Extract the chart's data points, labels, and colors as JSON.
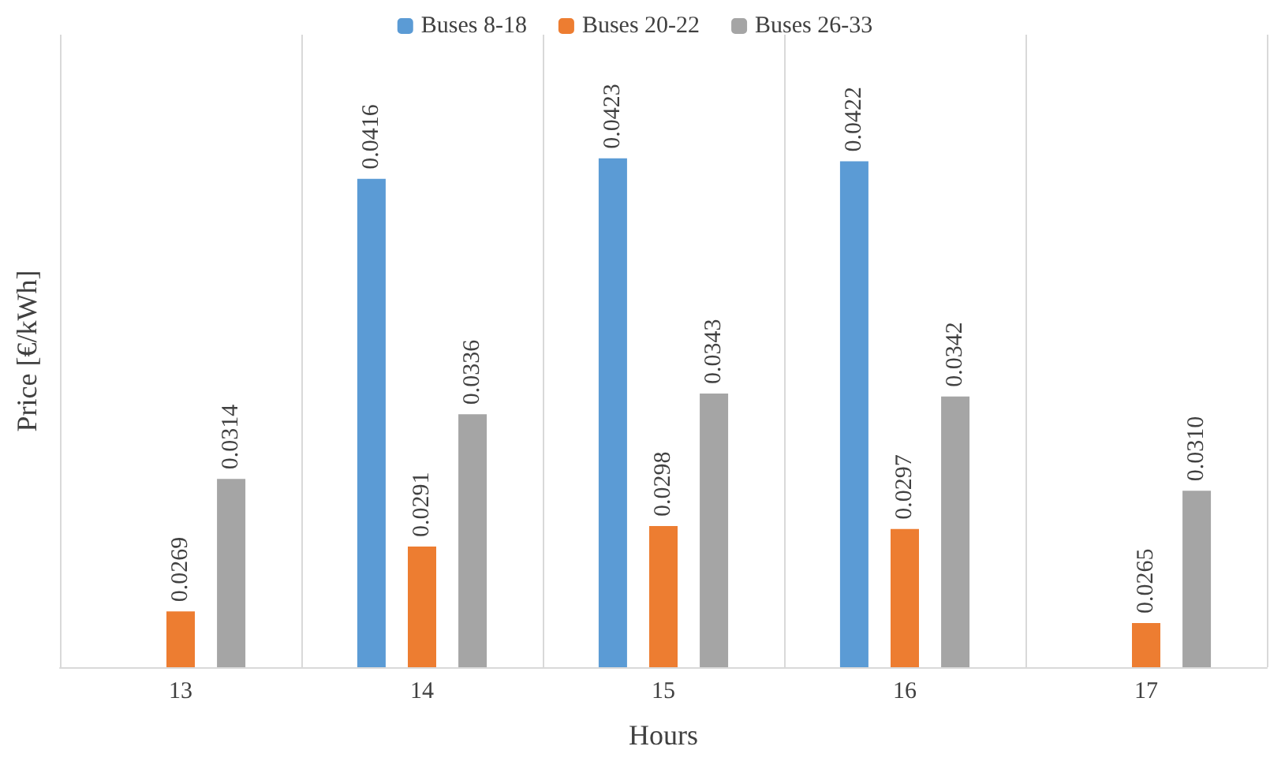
{
  "chart_data": {
    "type": "bar",
    "xlabel": "Hours",
    "ylabel": "Price [€/kWh]",
    "categories": [
      "13",
      "14",
      "15",
      "16",
      "17"
    ],
    "series": [
      {
        "name": "Buses 8-18",
        "color": "#5b9bd5",
        "values": [
          null,
          0.0416,
          0.0423,
          0.0422,
          null
        ]
      },
      {
        "name": "Buses 20-22",
        "color": "#ed7d31",
        "values": [
          0.0269,
          0.0291,
          0.0298,
          0.0297,
          0.0265
        ]
      },
      {
        "name": "Buses 26-33",
        "color": "#a5a5a5",
        "values": [
          0.0314,
          0.0336,
          0.0343,
          0.0342,
          0.031
        ],
        "value_labels": [
          "0.0314",
          "0.0336",
          "0.0343",
          "0.0342",
          "0.0310"
        ]
      }
    ],
    "ylim": [
      0.025,
      0.0465
    ],
    "tick_labels": "x",
    "data_labels": true,
    "grid": "x",
    "legend": "top"
  }
}
